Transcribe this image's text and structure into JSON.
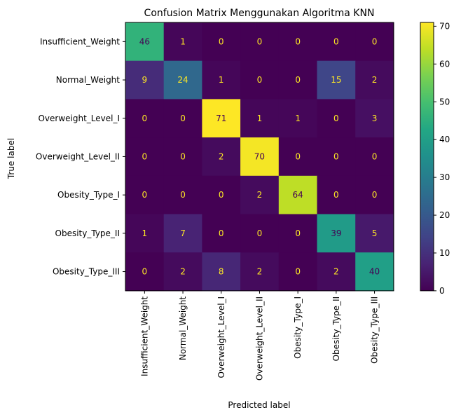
{
  "chart_data": {
    "type": "heatmap",
    "title": "Confusion Matrix Menggunakan Algoritma KNN",
    "xlabel": "Predicted label",
    "ylabel": "True label",
    "rows": [
      "Insufficient_Weight",
      "Normal_Weight",
      "Overweight_Level_I",
      "Overweight_Level_II",
      "Obesity_Type_I",
      "Obesity_Type_II",
      "Obesity_Type_III"
    ],
    "columns": [
      "Insufficient_Weight",
      "Normal_Weight",
      "Overweight_Level_I",
      "Overweight_Level_II",
      "Obesity_Type_I",
      "Obesity_Type_II",
      "Obesity_Type_III"
    ],
    "values": [
      [
        46,
        1,
        0,
        0,
        0,
        0,
        0
      ],
      [
        9,
        24,
        1,
        0,
        0,
        15,
        2
      ],
      [
        0,
        0,
        71,
        1,
        1,
        0,
        3
      ],
      [
        0,
        0,
        2,
        70,
        0,
        0,
        0
      ],
      [
        0,
        0,
        0,
        2,
        64,
        0,
        0
      ],
      [
        1,
        7,
        0,
        0,
        0,
        39,
        5
      ],
      [
        0,
        2,
        8,
        2,
        0,
        2,
        40
      ]
    ],
    "colormap": "viridis",
    "vmin": 0,
    "vmax": 71,
    "colorbar_ticks": [
      0,
      10,
      20,
      30,
      40,
      50,
      60,
      70
    ],
    "text_color_dark_cells": "#fde725",
    "text_color_light_cells": "#440154"
  }
}
